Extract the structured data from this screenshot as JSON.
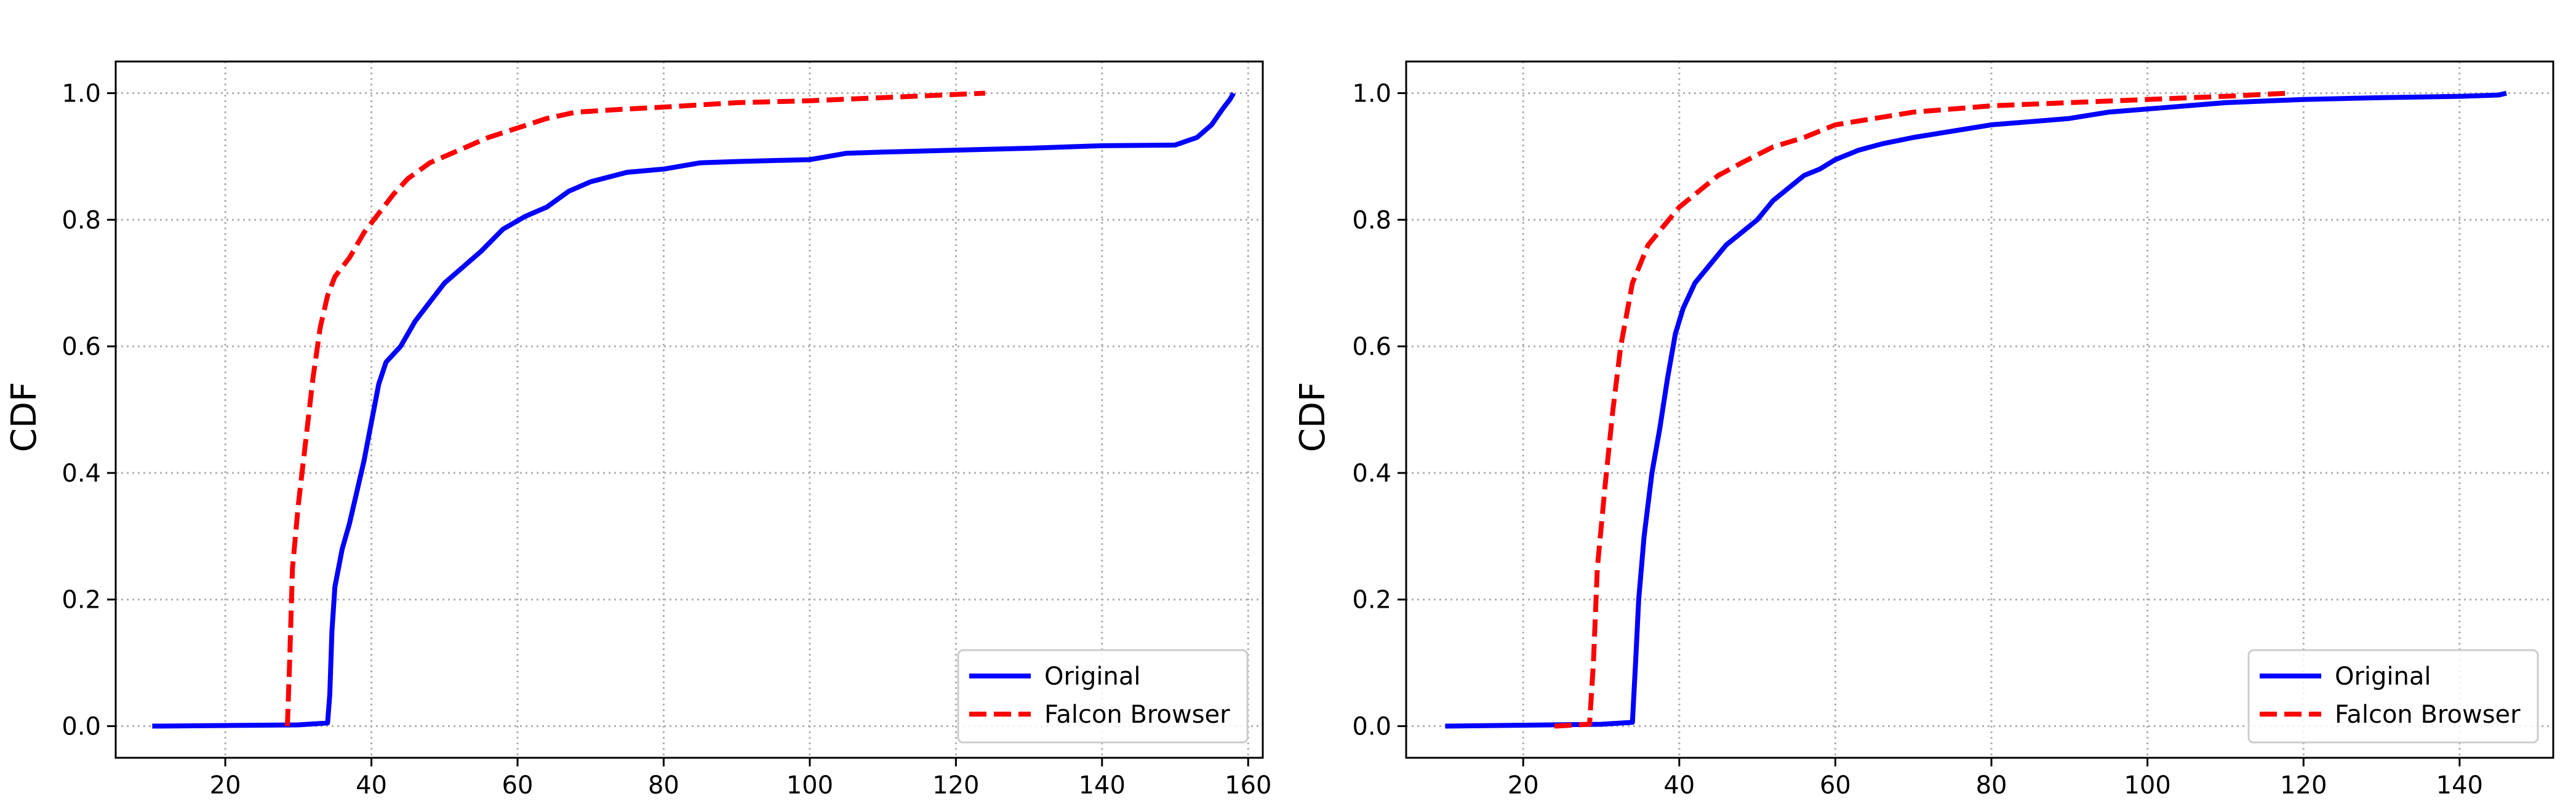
{
  "colors": {
    "original": "#0000ff",
    "falcon": "#ff0000",
    "grid": "#b0b0b0"
  },
  "chart_data": [
    {
      "type": "line",
      "title": "",
      "xlabel": "",
      "ylabel": "CDF",
      "xlim": [
        5,
        162
      ],
      "ylim": [
        -0.05,
        1.05
      ],
      "xticks": [
        20,
        40,
        60,
        80,
        100,
        120,
        140,
        160
      ],
      "yticks": [
        0.0,
        0.2,
        0.4,
        0.6,
        0.8,
        1.0
      ],
      "grid": true,
      "legend_position": "lower-right",
      "series": [
        {
          "name": "Original",
          "color": "#0000ff",
          "style": "solid",
          "points": [
            [
              10,
              0.0
            ],
            [
              30,
              0.002
            ],
            [
              34,
              0.005
            ],
            [
              34.3,
              0.05
            ],
            [
              34.6,
              0.15
            ],
            [
              35,
              0.22
            ],
            [
              36,
              0.28
            ],
            [
              37,
              0.32
            ],
            [
              38,
              0.37
            ],
            [
              39,
              0.42
            ],
            [
              40,
              0.48
            ],
            [
              41,
              0.54
            ],
            [
              42,
              0.575
            ],
            [
              44,
              0.6
            ],
            [
              46,
              0.64
            ],
            [
              48,
              0.67
            ],
            [
              50,
              0.7
            ],
            [
              52,
              0.72
            ],
            [
              55,
              0.75
            ],
            [
              58,
              0.785
            ],
            [
              61,
              0.805
            ],
            [
              64,
              0.82
            ],
            [
              67,
              0.845
            ],
            [
              70,
              0.86
            ],
            [
              75,
              0.875
            ],
            [
              80,
              0.88
            ],
            [
              85,
              0.89
            ],
            [
              90,
              0.892
            ],
            [
              100,
              0.895
            ],
            [
              105,
              0.905
            ],
            [
              110,
              0.907
            ],
            [
              120,
              0.91
            ],
            [
              130,
              0.913
            ],
            [
              140,
              0.917
            ],
            [
              150,
              0.918
            ],
            [
              153,
              0.93
            ],
            [
              155,
              0.95
            ],
            [
              156.5,
              0.975
            ],
            [
              157.5,
              0.99
            ],
            [
              158,
              1.0
            ]
          ]
        },
        {
          "name": "Falcon Browser",
          "color": "#ff0000",
          "style": "dashed",
          "points": [
            [
              28.5,
              0.0
            ],
            [
              28.8,
              0.1
            ],
            [
              29.2,
              0.25
            ],
            [
              30,
              0.35
            ],
            [
              31,
              0.45
            ],
            [
              32,
              0.55
            ],
            [
              33,
              0.63
            ],
            [
              34,
              0.68
            ],
            [
              35,
              0.71
            ],
            [
              37,
              0.74
            ],
            [
              39,
              0.78
            ],
            [
              41,
              0.81
            ],
            [
              43,
              0.84
            ],
            [
              45,
              0.865
            ],
            [
              48,
              0.89
            ],
            [
              52,
              0.91
            ],
            [
              56,
              0.93
            ],
            [
              60,
              0.945
            ],
            [
              64,
              0.96
            ],
            [
              68,
              0.97
            ],
            [
              75,
              0.975
            ],
            [
              80,
              0.978
            ],
            [
              90,
              0.985
            ],
            [
              100,
              0.988
            ],
            [
              110,
              0.993
            ],
            [
              124,
              1.0
            ]
          ]
        }
      ]
    },
    {
      "type": "line",
      "title": "",
      "xlabel": "",
      "ylabel": "CDF",
      "xlim": [
        5,
        152
      ],
      "ylim": [
        -0.05,
        1.05
      ],
      "xticks": [
        20,
        40,
        60,
        80,
        100,
        120,
        140
      ],
      "yticks": [
        0.0,
        0.2,
        0.4,
        0.6,
        0.8,
        1.0
      ],
      "grid": true,
      "legend_position": "lower-right",
      "series": [
        {
          "name": "Original",
          "color": "#0000ff",
          "style": "solid",
          "points": [
            [
              10,
              0.0
            ],
            [
              30,
              0.003
            ],
            [
              34,
              0.006
            ],
            [
              34.4,
              0.1
            ],
            [
              34.8,
              0.2
            ],
            [
              35.5,
              0.3
            ],
            [
              36.5,
              0.4
            ],
            [
              37.5,
              0.47
            ],
            [
              38.5,
              0.55
            ],
            [
              39.5,
              0.62
            ],
            [
              40.5,
              0.66
            ],
            [
              42,
              0.7
            ],
            [
              44,
              0.73
            ],
            [
              46,
              0.76
            ],
            [
              48,
              0.78
            ],
            [
              50,
              0.8
            ],
            [
              52,
              0.83
            ],
            [
              54,
              0.85
            ],
            [
              56,
              0.87
            ],
            [
              58,
              0.88
            ],
            [
              60,
              0.895
            ],
            [
              63,
              0.91
            ],
            [
              66,
              0.92
            ],
            [
              70,
              0.93
            ],
            [
              75,
              0.94
            ],
            [
              80,
              0.95
            ],
            [
              85,
              0.955
            ],
            [
              90,
              0.96
            ],
            [
              95,
              0.97
            ],
            [
              100,
              0.975
            ],
            [
              110,
              0.985
            ],
            [
              120,
              0.99
            ],
            [
              130,
              0.993
            ],
            [
              140,
              0.995
            ],
            [
              145,
              0.997
            ],
            [
              146,
              1.0
            ]
          ]
        },
        {
          "name": "Falcon Browser",
          "color": "#ff0000",
          "style": "dashed",
          "points": [
            [
              24,
              0.0
            ],
            [
              28.5,
              0.003
            ],
            [
              29,
              0.1
            ],
            [
              29.5,
              0.25
            ],
            [
              30.5,
              0.38
            ],
            [
              31.5,
              0.5
            ],
            [
              32.5,
              0.6
            ],
            [
              34,
              0.7
            ],
            [
              36,
              0.76
            ],
            [
              38,
              0.79
            ],
            [
              40,
              0.82
            ],
            [
              42,
              0.84
            ],
            [
              45,
              0.87
            ],
            [
              48,
              0.89
            ],
            [
              52,
              0.915
            ],
            [
              56,
              0.93
            ],
            [
              60,
              0.95
            ],
            [
              65,
              0.96
            ],
            [
              70,
              0.97
            ],
            [
              75,
              0.975
            ],
            [
              80,
              0.98
            ],
            [
              90,
              0.985
            ],
            [
              100,
              0.99
            ],
            [
              110,
              0.995
            ],
            [
              118,
              1.0
            ]
          ]
        }
      ]
    }
  ]
}
